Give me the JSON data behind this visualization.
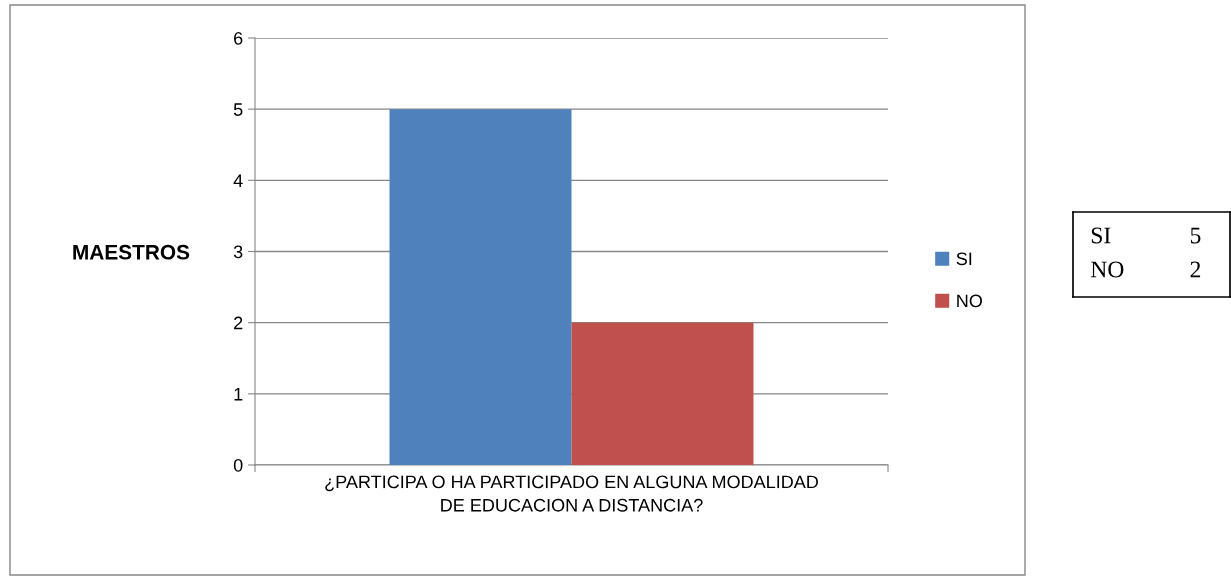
{
  "chart_data": [
    {
      "type": "bar",
      "xlabel": "¿PARTICIPA O HA PARTICIPADO EN ALGUNA MODALIDAD DE EDUCACION A DISTANCIA?",
      "ylabel": "MAESTROS",
      "categories": [
        null
      ],
      "series": [
        {
          "name": "SI",
          "color": "#4f81bd",
          "values": [
            5
          ]
        },
        {
          "name": "NO",
          "color": "#c0504d",
          "values": [
            2
          ]
        }
      ],
      "ylim": [
        0,
        6
      ],
      "yticks": [
        0,
        1,
        2,
        3,
        4,
        5,
        6
      ],
      "grid": "y",
      "legend": "right"
    },
    {
      "type": "other",
      "categories": [
        "SI",
        "NO"
      ],
      "values": [
        5,
        2
      ],
      "data_labels": true
    }
  ]
}
